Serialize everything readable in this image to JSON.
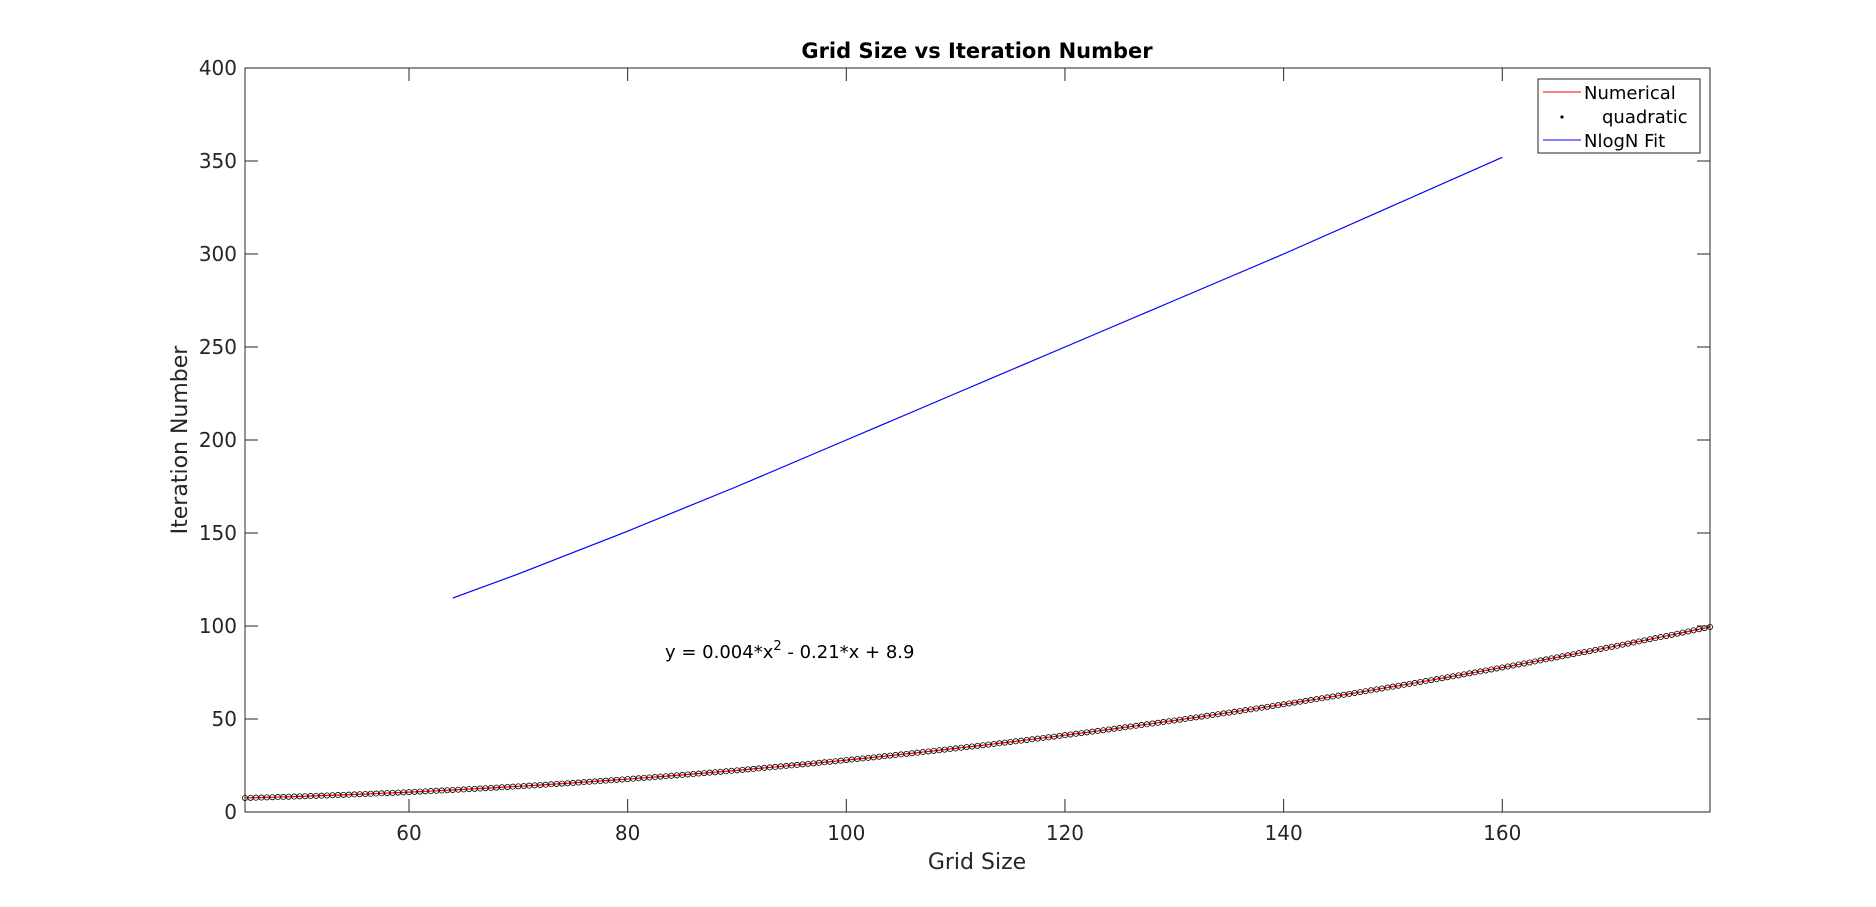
{
  "chart_data": {
    "type": "line",
    "title": "Grid Size vs Iteration Number",
    "xlabel": "Grid Size",
    "ylabel": "Iteration Number",
    "xlim": [
      45,
      179
    ],
    "ylim": [
      0,
      400
    ],
    "xticks": [
      60,
      80,
      100,
      120,
      140,
      160
    ],
    "yticks": [
      0,
      50,
      100,
      150,
      200,
      250,
      300,
      350,
      400
    ],
    "grid": false,
    "legend_position": "top-right",
    "annotation": {
      "text": "y = 0.004*x",
      "superscript": "2",
      "text_after": " - 0.21*x + 8.9",
      "x": 83,
      "y": 86
    },
    "series": [
      {
        "name": "Numerical",
        "style": "line",
        "color": "#ff0000",
        "x_start": 45,
        "x_end": 179,
        "x_step": 1,
        "equation": {
          "a": 0.004,
          "b": -0.21,
          "c": 8.9
        }
      },
      {
        "name": "quadratic",
        "style": "markers",
        "color": "#000000",
        "x_start": 45,
        "x_end": 179,
        "x_step": 0.5,
        "equation": {
          "a": 0.004,
          "b": -0.21,
          "c": 8.9
        }
      },
      {
        "name": "NlogN Fit",
        "style": "line",
        "color": "#0000ff",
        "x": [
          64,
          70,
          80,
          90,
          100,
          110,
          120,
          130,
          140,
          150,
          160
        ],
        "y": [
          115,
          128,
          151,
          175,
          200,
          225,
          250,
          275,
          300,
          326,
          352
        ]
      }
    ]
  }
}
